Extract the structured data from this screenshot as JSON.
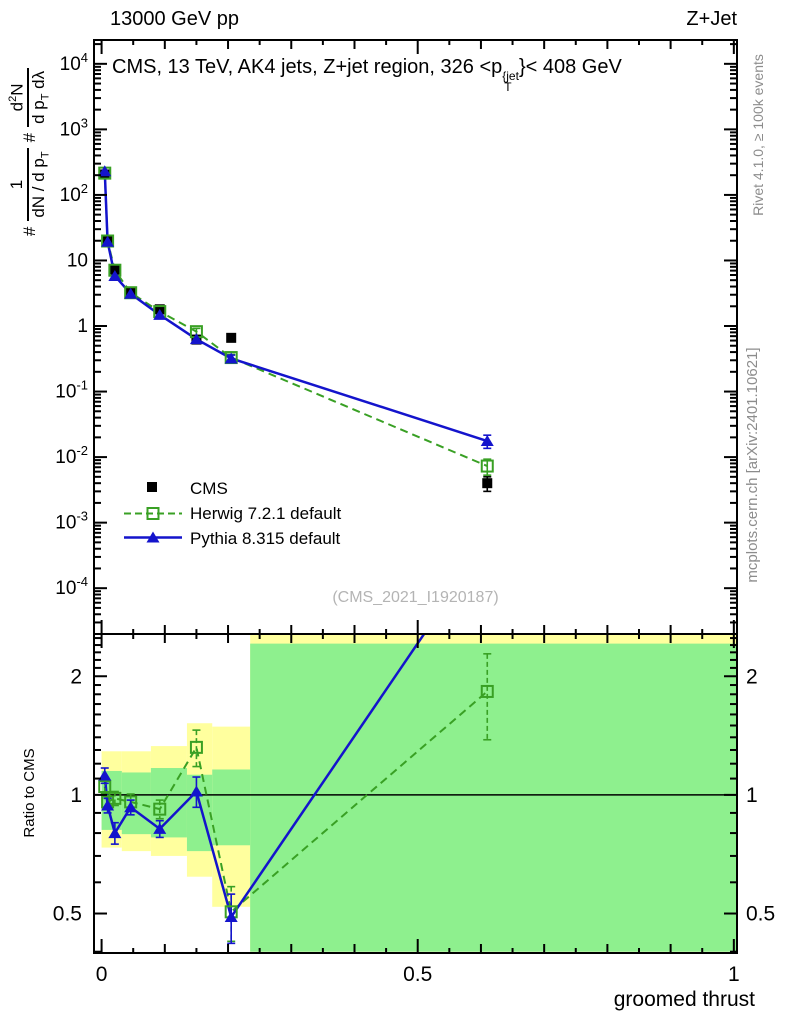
{
  "header": {
    "left": "13000 GeV pp",
    "right": "Z+Jet"
  },
  "title": {
    "text": "CMS, 13 TeV, AK4 jets, Z+jet region, 326 <p",
    "sup": "{jet",
    "sub": "T",
    "tail": "}< 408 GeV"
  },
  "ylabel": {
    "hash1": "#",
    "f1num": "1",
    "f1den": "dN / d p",
    "f1den_sub": "T",
    "hash2": "#",
    "f2num_a": "d",
    "f2num_sup": "2",
    "f2num_b": "N",
    "f2den_a": "d p",
    "f2den_a_sub": "T",
    "f2den_b": " dλ"
  },
  "right_margin": {
    "top": "Rivet 4.1.0, ≥ 100k events",
    "bottom": "mcplots.cern.ch [arXiv:2401.10621]"
  },
  "watermark": "(CMS_2021_I1920187)",
  "ratio_label": "Ratio to CMS",
  "xlabel": "groomed thrust",
  "legend": [
    {
      "label": "CMS"
    },
    {
      "label": "Herwig 7.2.1 default"
    },
    {
      "label": "Pythia 8.315 default"
    }
  ],
  "chart_data": {
    "type": "line",
    "title": "CMS, 13 TeV, AK4 jets, Z+jet region, 326 < pT{jet} < 408 GeV",
    "xlabel": "groomed thrust",
    "ylabel": "# 1/(dN/dpT) # d2N/(dpT dlambda)",
    "legend_position": "left-middle",
    "grid": false,
    "x": [
      0.005,
      0.0095,
      0.021,
      0.046,
      0.092,
      0.15,
      0.205,
      0.61
    ],
    "series": [
      {
        "name": "CMS",
        "color": "#000000",
        "marker": "square",
        "line": "none",
        "values": [
          205,
          20.5,
          7.3,
          3.35,
          1.8,
          0.62,
          0.66,
          0.004
        ],
        "errors": [
          12,
          1.2,
          0.4,
          0.18,
          0.09,
          0.04,
          0.05,
          0.001
        ]
      },
      {
        "name": "Herwig 7.2.1 default",
        "color": "#39a024",
        "marker": "open-square",
        "line": "dashed",
        "values": [
          215,
          19.8,
          7.1,
          3.22,
          1.66,
          0.82,
          0.33,
          0.0073
        ],
        "errors": [
          8,
          0.8,
          0.28,
          0.12,
          0.06,
          0.1,
          0.04,
          0.002
        ],
        "ratio": [
          1.05,
          0.96,
          0.98,
          0.96,
          0.92,
          1.32,
          0.505,
          1.83
        ],
        "ratio_errors": [
          0.04,
          0.035,
          0.04,
          0.045,
          0.05,
          0.14,
          0.08,
          0.45
        ]
      },
      {
        "name": "Pythia 8.315 default",
        "color": "#1414cc",
        "marker": "triangle",
        "line": "solid",
        "values": [
          230,
          19.3,
          5.8,
          3.1,
          1.48,
          0.63,
          0.32,
          0.0176
        ],
        "errors": [
          8,
          0.8,
          0.25,
          0.1,
          0.05,
          0.05,
          0.04,
          0.004
        ],
        "ratio": [
          1.12,
          0.94,
          0.8,
          0.93,
          0.82,
          1.02,
          0.49,
          4.4
        ],
        "ratio_errors": [
          0.05,
          0.04,
          0.05,
          0.04,
          0.04,
          0.09,
          0.07,
          0
        ]
      }
    ],
    "main_axis": {
      "ylog": true,
      "ylim": [
        2e-05,
        23100.0
      ],
      "exponents": [
        4,
        3,
        2,
        1,
        0,
        -1,
        -2,
        -3,
        -4
      ]
    },
    "ratio_axis": {
      "ylog": true,
      "ylim": [
        0.397,
        2.56
      ],
      "ticks": [
        2,
        1,
        0.5
      ],
      "tick_labels": [
        "2",
        "1",
        "0.5"
      ],
      "minor": [
        0.4,
        0.6,
        0.7,
        0.8,
        0.9,
        1.1,
        1.2,
        1.3,
        1.4,
        1.5,
        1.6,
        1.7,
        1.8,
        1.9,
        2.1,
        2.2,
        2.3,
        2.4,
        2.5
      ]
    },
    "x_axis": {
      "lim": [
        -0.012,
        1.005
      ],
      "major": [
        0,
        0.5,
        1
      ],
      "major_labels": [
        "0",
        "0.5",
        "1"
      ],
      "medium_step": 0.1,
      "minor_step": 0.05
    },
    "bands": {
      "yellow": "#ffff9e",
      "green": "#8ef08e",
      "items_yellow": [
        {
          "x0": 0.0,
          "x1": 0.032,
          "hi": 1.29,
          "lo": 0.735
        },
        {
          "x0": 0.032,
          "x1": 0.078,
          "hi": 1.29,
          "lo": 0.72
        },
        {
          "x0": 0.078,
          "x1": 0.135,
          "hi": 1.33,
          "lo": 0.7
        },
        {
          "x0": 0.135,
          "x1": 0.175,
          "hi": 1.52,
          "lo": 0.62
        },
        {
          "x0": 0.175,
          "x1": 0.235,
          "hi": 1.49,
          "lo": 0.52
        },
        {
          "x0": 0.235,
          "x1": 1.005,
          "hi": 2.6,
          "lo": 0.4
        }
      ],
      "items_green": [
        {
          "x0": 0.0,
          "x1": 0.032,
          "hi": 1.15,
          "lo": 0.815
        },
        {
          "x0": 0.032,
          "x1": 0.078,
          "hi": 1.14,
          "lo": 0.795
        },
        {
          "x0": 0.078,
          "x1": 0.135,
          "hi": 1.17,
          "lo": 0.78
        },
        {
          "x0": 0.135,
          "x1": 0.175,
          "hi": 1.125,
          "lo": 0.72
        },
        {
          "x0": 0.175,
          "x1": 0.235,
          "hi": 1.16,
          "lo": 0.745
        },
        {
          "x0": 0.235,
          "x1": 1.005,
          "hi": 2.42,
          "lo": 0.4
        }
      ]
    }
  }
}
